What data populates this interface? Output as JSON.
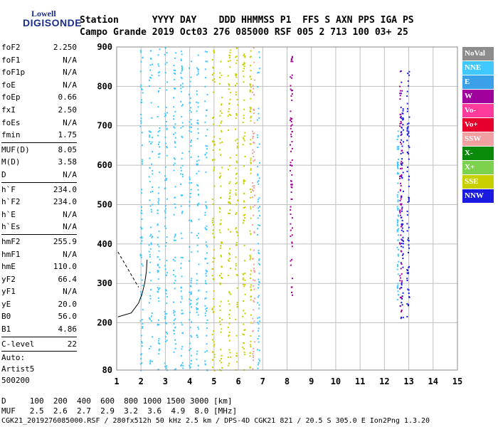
{
  "logo": {
    "top": "Lowell",
    "main": "DIGISONDE"
  },
  "header": {
    "row1": "Station      YYYY DAY    DDD HHMMSS P1  FFS S AXN PPS IGA PS",
    "row2": "Campo Grande 2019 Oct03 276 085000 RSF 005 2 713 100 03+ 25"
  },
  "params_group1": [
    {
      "label": "foF2",
      "value": "2.250"
    },
    {
      "label": "foF1",
      "value": "N/A"
    },
    {
      "label": "foF1p",
      "value": "N/A"
    },
    {
      "label": "foE",
      "value": "N/A"
    },
    {
      "label": "foEp",
      "value": "0.66"
    },
    {
      "label": "fxI",
      "value": "2.50"
    },
    {
      "label": "foEs",
      "value": "N/A"
    },
    {
      "label": "fmin",
      "value": "1.75"
    }
  ],
  "params_group2": [
    {
      "label": "MUF(D)",
      "value": "8.05"
    },
    {
      "label": "M(D)",
      "value": "3.58"
    },
    {
      "label": "D",
      "value": "N/A"
    }
  ],
  "params_group3": [
    {
      "label": "h`F",
      "value": "234.0"
    },
    {
      "label": "h`F2",
      "value": "234.0"
    },
    {
      "label": "h`E",
      "value": "N/A"
    },
    {
      "label": "h`Es",
      "value": "N/A"
    }
  ],
  "params_group4": [
    {
      "label": "hmF2",
      "value": "255.9"
    },
    {
      "label": "hmF1",
      "value": "N/A"
    },
    {
      "label": "hmE",
      "value": "110.0"
    },
    {
      "label": "yF2",
      "value": "66.4"
    },
    {
      "label": "yF1",
      "value": "N/A"
    },
    {
      "label": "yE",
      "value": "20.0"
    },
    {
      "label": "B0",
      "value": "56.0"
    },
    {
      "label": "B1",
      "value": "4.86"
    }
  ],
  "params_group5": [
    {
      "label": "C-level",
      "value": "22"
    }
  ],
  "autoscale": {
    "line1": "Auto:",
    "line2": "Artist5",
    "line3": "500200"
  },
  "legend": [
    {
      "label": "NoVal",
      "color": "#8c8c8c"
    },
    {
      "label": "NNE",
      "color": "#40c8ff"
    },
    {
      "label": "E",
      "color": "#3aa0e8"
    },
    {
      "label": "W",
      "color": "#a0009c"
    },
    {
      "label": "Vo-",
      "color": "#ff3c9c"
    },
    {
      "label": "Vo+",
      "color": "#e8002c"
    },
    {
      "label": "SSW",
      "color": "#f0a0a0"
    },
    {
      "label": "X-",
      "color": "#0a8a0a"
    },
    {
      "label": "X+",
      "color": "#7cd24c"
    },
    {
      "label": "SSE",
      "color": "#c8d000"
    },
    {
      "label": "NNW",
      "color": "#1a1ae0"
    }
  ],
  "bottom": {
    "row1": "D     100  200  400  600  800 1000 1500 3000 [km]",
    "row2": "MUF   2.5  2.6  2.7  2.9  3.2  3.6  4.9  8.0 [MHz]"
  },
  "footer": "CGK21_2019276085000.RSF / 280fx512h 50 kHz 2.5 km / DPS-4D CGK21 821 / 20.5 S 305.0 E Ion2Png 1.3.20",
  "chart_data": {
    "type": "scatter",
    "xlabel": "",
    "ylabel": "",
    "xlim": [
      1,
      15
    ],
    "ylim": [
      80,
      900
    ],
    "x_ticks": [
      1,
      2,
      3,
      4,
      5,
      6,
      7,
      8,
      9,
      10,
      11,
      12,
      13,
      14,
      15
    ],
    "y_ticks": [
      80,
      200,
      300,
      400,
      500,
      600,
      700,
      800,
      900
    ],
    "grid": true,
    "series": [
      {
        "name": "NNE",
        "color": "#40c8ff",
        "bands": [
          [
            1.95,
            2.05
          ],
          [
            2.3,
            2.45
          ],
          [
            2.65,
            2.75
          ],
          [
            2.95,
            3.05
          ],
          [
            3.3,
            3.4
          ],
          [
            3.6,
            3.7
          ],
          [
            3.95,
            4.05
          ],
          [
            4.25,
            4.35
          ],
          [
            4.6,
            4.7
          ],
          [
            6.75,
            6.85
          ],
          [
            12.5,
            12.55
          ]
        ]
      },
      {
        "name": "SSE",
        "color": "#c8d000",
        "bands": [
          [
            4.9,
            5.0
          ],
          [
            5.2,
            5.3
          ],
          [
            5.55,
            5.65
          ],
          [
            5.85,
            5.95
          ],
          [
            6.15,
            6.25
          ],
          [
            6.45,
            6.5
          ]
        ]
      },
      {
        "name": "SSW",
        "color": "#f0a0a0",
        "bands": [
          [
            6.55,
            6.65
          ]
        ]
      },
      {
        "name": "W",
        "color": "#a0009c",
        "bands": [
          [
            8.1,
            8.2
          ],
          [
            12.6,
            12.7
          ]
        ]
      },
      {
        "name": "NNW",
        "color": "#1a1ae0",
        "bands": [
          [
            12.65,
            12.75
          ],
          [
            12.9,
            13.0
          ]
        ]
      }
    ],
    "trace": {
      "name": "profile",
      "color": "#000",
      "x": [
        1.05,
        1.6,
        1.9,
        2.05,
        2.15,
        2.22,
        2.25
      ],
      "y": [
        215,
        225,
        250,
        275,
        300,
        330,
        360
      ]
    }
  }
}
